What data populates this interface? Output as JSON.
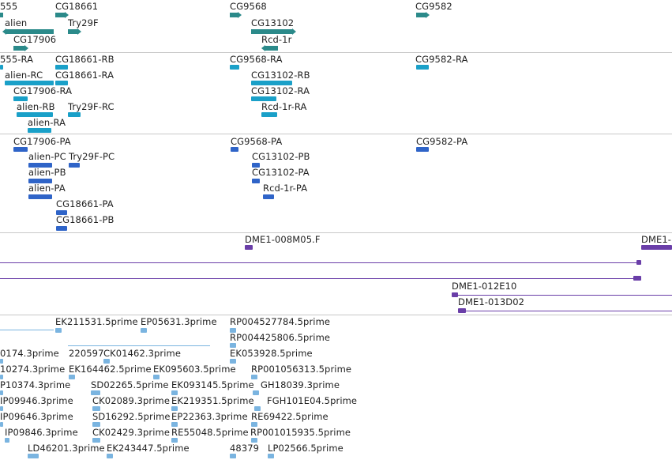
{
  "colors": {
    "gene": "#2b8a8a",
    "transcript_cyan": "#1aa0c8",
    "transcript_blue": "#2f64c8",
    "clone": "#6a3ea8",
    "est": "#7ab4e0"
  },
  "genes": [
    {
      "label": "555"
    },
    {
      "label": "CG18661"
    },
    {
      "label": "CG9568"
    },
    {
      "label": "CG9582"
    },
    {
      "label": "alien"
    },
    {
      "label": "Try29F"
    },
    {
      "label": "CG13102"
    },
    {
      "label": "CG17906"
    },
    {
      "label": "Rcd-1r"
    }
  ],
  "tx_cyan": [
    {
      "label": "555-RA"
    },
    {
      "label": "CG18661-RB"
    },
    {
      "label": "CG9568-RA"
    },
    {
      "label": "CG9582-RA"
    },
    {
      "label": "alien-RC"
    },
    {
      "label": "CG18661-RA"
    },
    {
      "label": "CG13102-RB"
    },
    {
      "label": "CG17906-RA"
    },
    {
      "label": "CG13102-RA"
    },
    {
      "label": "alien-RB"
    },
    {
      "label": "Try29F-RC"
    },
    {
      "label": "Rcd-1r-RA"
    },
    {
      "label": "alien-RA"
    }
  ],
  "tx_blue": [
    {
      "label": "CG17906-PA"
    },
    {
      "label": "CG9568-PA"
    },
    {
      "label": "CG9582-PA"
    },
    {
      "label": "alien-PC"
    },
    {
      "label": "Try29F-PC"
    },
    {
      "label": "CG13102-PB"
    },
    {
      "label": "alien-PB"
    },
    {
      "label": "CG13102-PA"
    },
    {
      "label": "alien-PA"
    },
    {
      "label": "Rcd-1r-PA"
    },
    {
      "label": "CG18661-PA"
    },
    {
      "label": "CG18661-PB"
    }
  ],
  "clones": [
    {
      "label": "DME1-008M05.F"
    },
    {
      "label": "DME1-"
    },
    {
      "label": "DME1-012E10"
    },
    {
      "label": "DME1-013D02"
    }
  ],
  "ests": [
    {
      "label": "EK211531.5prime"
    },
    {
      "label": "EP05631.3prime"
    },
    {
      "label": "RP004527784.5prime"
    },
    {
      "label": "RP004425806.5prime"
    },
    {
      "label": "0174.3prime"
    },
    {
      "label": "220597"
    },
    {
      "label": "CK01462.3prime"
    },
    {
      "label": "EK053928.5prime"
    },
    {
      "label": "10274.3prime"
    },
    {
      "label": "EK164462.5prime"
    },
    {
      "label": "EK095603.5prime"
    },
    {
      "label": "RP001056313.5prime"
    },
    {
      "label": "P10374.3prime"
    },
    {
      "label": "SD02265.5prime"
    },
    {
      "label": "EK093145.5prime"
    },
    {
      "label": "GH18039.3prime"
    },
    {
      "label": "IP09946.3prime"
    },
    {
      "label": "CK02089.3prime"
    },
    {
      "label": "EK219351.5prime"
    },
    {
      "label": "FGH101E04.5prime"
    },
    {
      "label": "IP09646.3prime"
    },
    {
      "label": "SD16292.5prime"
    },
    {
      "label": "EP22363.3prime"
    },
    {
      "label": "RE69422.5prime"
    },
    {
      "label": "IP09846.3prime"
    },
    {
      "label": "CK02429.3prime"
    },
    {
      "label": "RE55048.5prime"
    },
    {
      "label": "RP001015935.5prime"
    },
    {
      "label": "LD46201.3prime"
    },
    {
      "label": "EK243447.5prime"
    },
    {
      "label": "48379"
    },
    {
      "label": "LP02566.5prime"
    }
  ]
}
